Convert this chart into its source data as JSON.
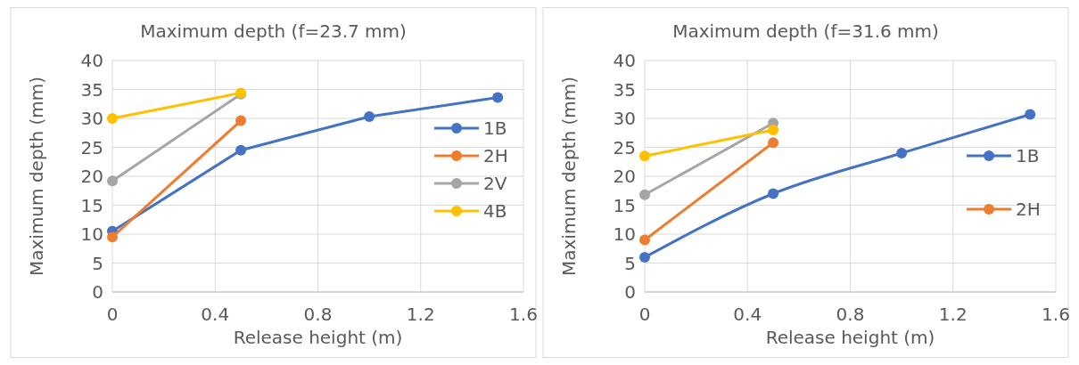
{
  "chart_data": [
    {
      "type": "line",
      "title": "Maximum depth (f=23.7 mm)",
      "xlabel": "Release height (m)",
      "ylabel": "Maximum depth (mm)",
      "xlim": [
        0,
        1.6
      ],
      "xticks": [
        0,
        0.4,
        0.8,
        1.2,
        1.6
      ],
      "ylim": [
        0,
        40
      ],
      "yticks": [
        0,
        5,
        10,
        15,
        20,
        25,
        30,
        35,
        40
      ],
      "grid": true,
      "legend": "right",
      "marker": "circle",
      "line_style": "solid",
      "series": [
        {
          "name": "1B",
          "color": "#4472c4",
          "x": [
            0,
            0.5,
            1.0,
            1.5
          ],
          "values": [
            10.5,
            24.5,
            30.3,
            33.6
          ]
        },
        {
          "name": "2H",
          "color": "#ed7d31",
          "x": [
            0,
            0.5
          ],
          "values": [
            9.5,
            29.6
          ]
        },
        {
          "name": "2V",
          "color": "#a5a5a5",
          "x": [
            0,
            0.5
          ],
          "values": [
            19.2,
            34.2
          ]
        },
        {
          "name": "4B",
          "color": "#ffc000",
          "x": [
            0,
            0.5
          ],
          "values": [
            30,
            34.4
          ]
        }
      ]
    },
    {
      "type": "line",
      "title": "Maximum depth (f=31.6 mm)",
      "xlabel": "Release height (m)",
      "ylabel": "Maximum depth (mm)",
      "xlim": [
        0,
        1.6
      ],
      "xticks": [
        0,
        0.4,
        0.8,
        1.2,
        1.6
      ],
      "ylim": [
        0,
        40
      ],
      "yticks": [
        0,
        5,
        10,
        15,
        20,
        25,
        30,
        35,
        40
      ],
      "grid": true,
      "legend": "right",
      "marker": "circle",
      "line_style": "solid",
      "series": [
        {
          "name": "1B",
          "color": "#4472c4",
          "x": [
            0,
            0.5,
            1.0,
            1.5
          ],
          "values": [
            6,
            17,
            24,
            30.7
          ]
        },
        {
          "name": "2H",
          "color": "#ed7d31",
          "x": [
            0,
            0.5
          ],
          "values": [
            9,
            25.8
          ]
        },
        {
          "color": "#a5a5a5",
          "x": [
            0,
            0.5
          ],
          "values": [
            16.8,
            29.2
          ]
        },
        {
          "color": "#ffc000",
          "x": [
            0,
            0.5
          ],
          "values": [
            23.5,
            28
          ]
        }
      ]
    }
  ]
}
